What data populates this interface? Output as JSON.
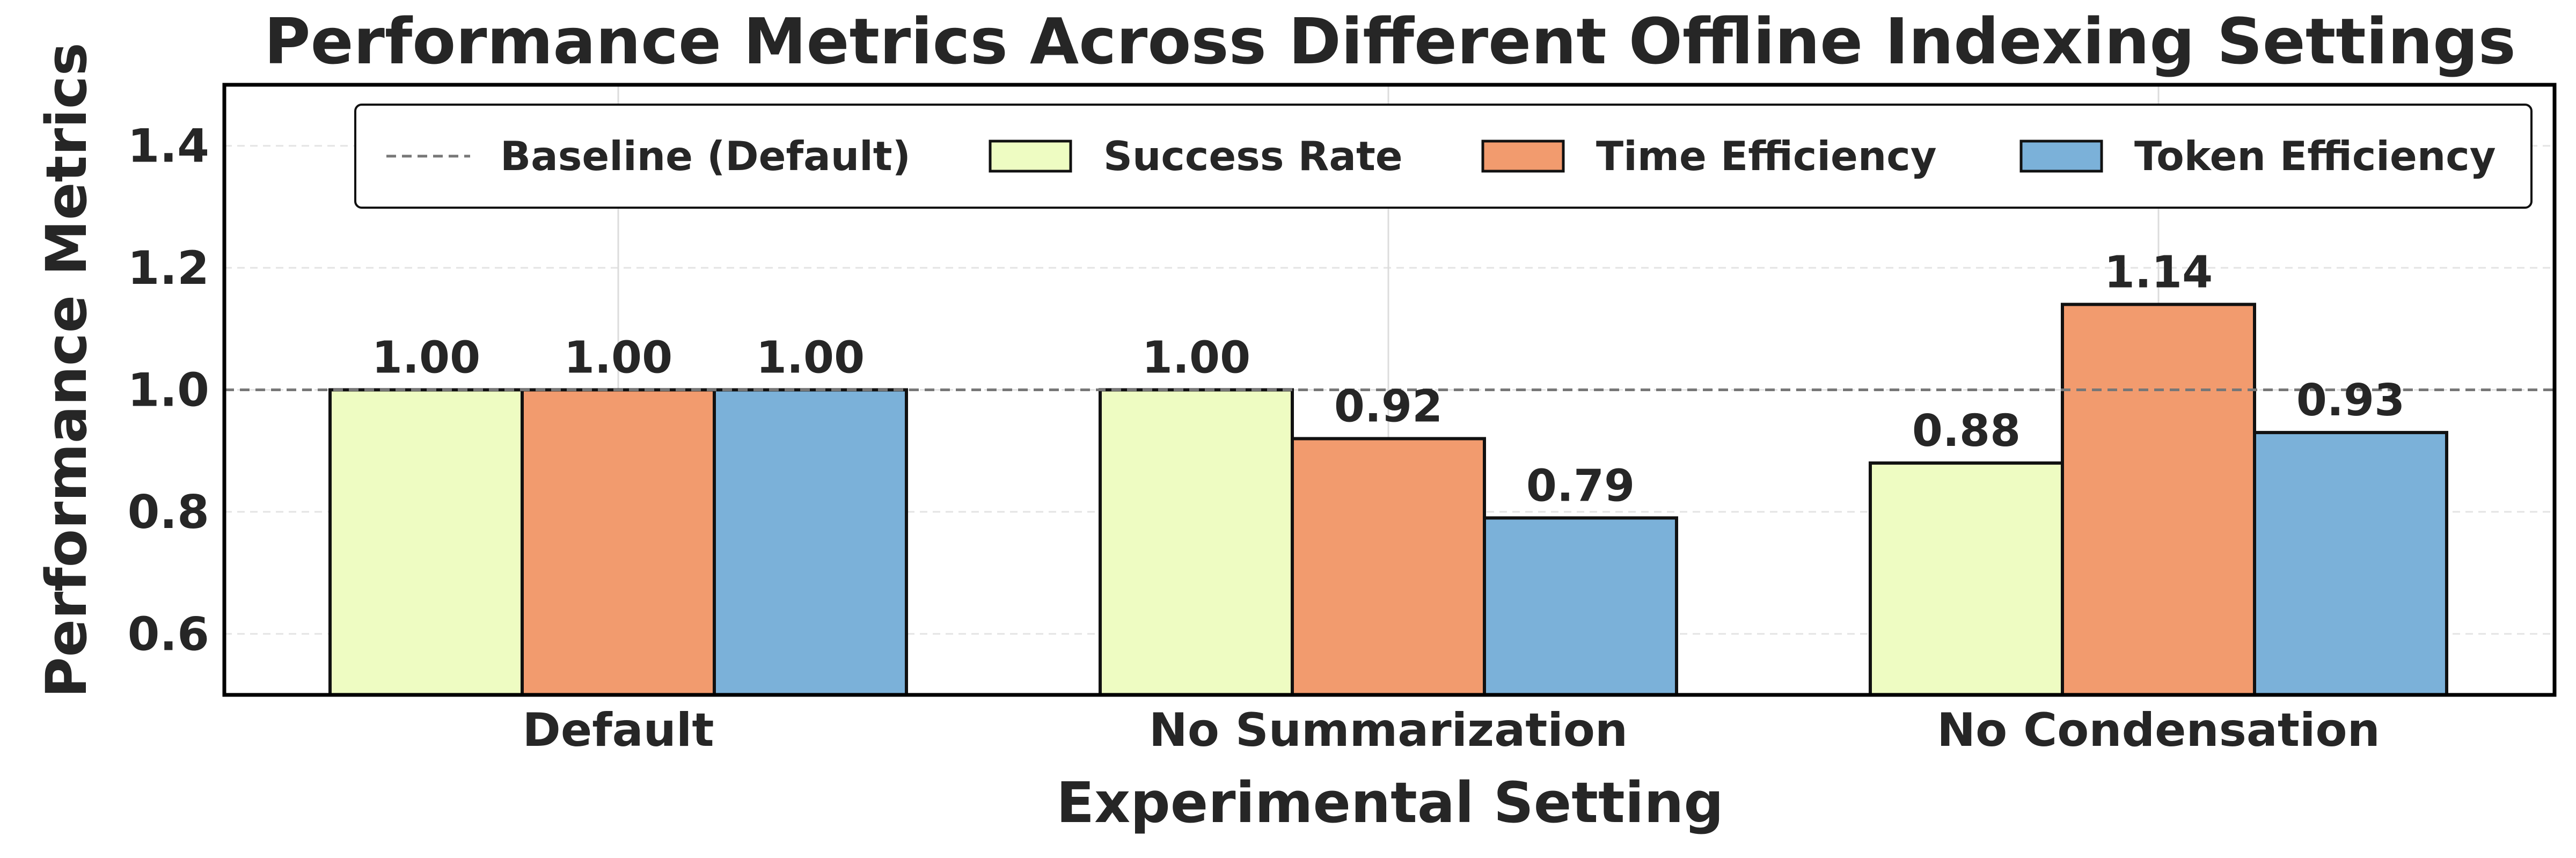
{
  "chart_data": {
    "type": "bar",
    "title": "Performance Metrics Across Different Offline Indexing Settings",
    "xlabel": "Experimental Setting",
    "ylabel": "Performance Metrics",
    "categories": [
      "Default",
      "No Summarization",
      "No Condensation"
    ],
    "series": [
      {
        "name": "Success Rate",
        "values": [
          1.0,
          1.0,
          0.88
        ],
        "labels": [
          "1.00",
          "1.00",
          "0.88"
        ],
        "color": "#eefcc2"
      },
      {
        "name": "Time Efficiency",
        "values": [
          1.0,
          0.92,
          1.14
        ],
        "labels": [
          "1.00",
          "0.92",
          "1.14"
        ],
        "color": "#f29b6e"
      },
      {
        "name": "Token Efficiency",
        "values": [
          1.0,
          0.79,
          0.93
        ],
        "labels": [
          "1.00",
          "0.79",
          "0.93"
        ],
        "color": "#7bb1d9"
      }
    ],
    "baseline": {
      "name": "Baseline (Default)",
      "value": 1.0,
      "color": "#777777",
      "style": "dashed"
    },
    "ylim": [
      0.5,
      1.5
    ],
    "yticks": [
      0.6,
      0.8,
      1.0,
      1.2,
      1.4
    ],
    "ytick_labels": [
      "0.6",
      "0.8",
      "1.0",
      "1.2",
      "1.4"
    ],
    "grid": true,
    "legend_position": "top"
  }
}
